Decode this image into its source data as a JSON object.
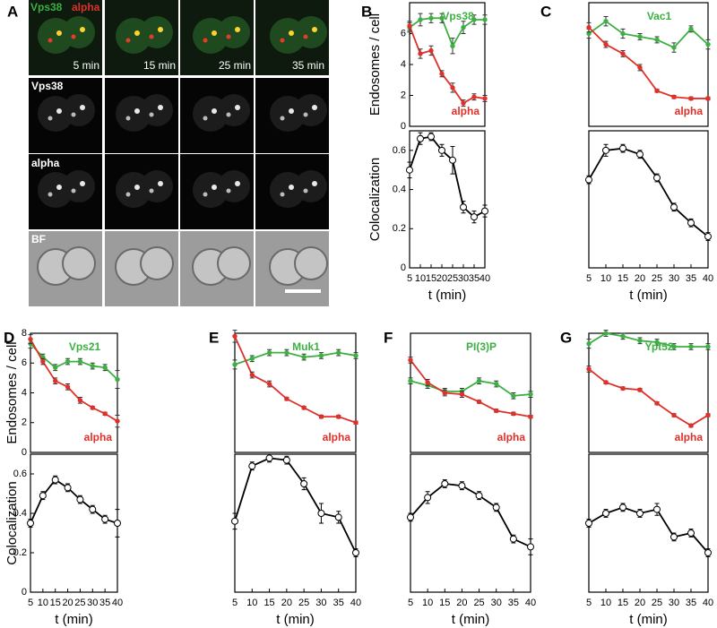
{
  "panel_a": {
    "label": "A",
    "merge_labels": [
      "Vps38",
      "alpha"
    ],
    "times": [
      "5 min",
      "15 min",
      "25 min",
      "35 min"
    ],
    "rows": [
      "Vps38",
      "alpha",
      "BF"
    ]
  },
  "chart_data": [
    {
      "type": "line",
      "panel": "B",
      "ylabel": "Endosomes / cell",
      "x": [
        5,
        10,
        15,
        20,
        25,
        30,
        35,
        40
      ],
      "xlim": [
        5,
        40
      ],
      "ylim": [
        0,
        8
      ],
      "yticks": [
        0,
        2,
        4,
        6
      ],
      "marker": "filled",
      "series": [
        {
          "name": "Vps38",
          "color": "#3cb043",
          "values": [
            6.4,
            6.9,
            7.0,
            7.0,
            5.2,
            6.4,
            6.9,
            6.9
          ],
          "errors": [
            0.3,
            0.4,
            0.3,
            0.3,
            0.5,
            0.4,
            0.3,
            0.3
          ]
        },
        {
          "name": "alpha",
          "color": "#e0302a",
          "values": [
            6.5,
            4.7,
            4.9,
            3.4,
            2.5,
            1.5,
            1.9,
            1.8
          ],
          "errors": [
            0.3,
            0.3,
            0.3,
            0.2,
            0.3,
            0.2,
            0.2,
            0.2
          ]
        }
      ]
    },
    {
      "type": "line",
      "ylabel": "Colocalization",
      "xlabel": "t (min)",
      "x": [
        5,
        10,
        15,
        20,
        25,
        30,
        35,
        40
      ],
      "xlim": [
        5,
        40
      ],
      "xticks": [
        5,
        10,
        15,
        20,
        25,
        30,
        35,
        40
      ],
      "ylim": [
        0,
        0.7
      ],
      "yticks": [
        0,
        0.2,
        0.4,
        0.6
      ],
      "marker": "open",
      "series": [
        {
          "color": "#000000",
          "values": [
            0.5,
            0.66,
            0.67,
            0.6,
            0.55,
            0.31,
            0.26,
            0.29
          ],
          "errors": [
            0.04,
            0.03,
            0.02,
            0.03,
            0.07,
            0.03,
            0.03,
            0.03
          ]
        }
      ]
    },
    {
      "type": "line",
      "panel": "C",
      "x": [
        5,
        10,
        15,
        20,
        25,
        30,
        35,
        40
      ],
      "xlim": [
        5,
        40
      ],
      "ylim": [
        0,
        8
      ],
      "marker": "filled",
      "series": [
        {
          "name": "Vac1",
          "color": "#3cb043",
          "values": [
            6.0,
            6.8,
            6.0,
            5.8,
            5.6,
            5.1,
            6.3,
            5.3
          ],
          "errors": [
            0.3,
            0.3,
            0.3,
            0.2,
            0.2,
            0.3,
            0.2,
            0.3
          ]
        },
        {
          "name": "alpha",
          "color": "#e0302a",
          "values": [
            6.4,
            5.3,
            4.7,
            3.8,
            2.3,
            1.9,
            1.8,
            1.8
          ],
          "errors": [
            0.3,
            0.2,
            0.2,
            0.2,
            0.1,
            0.1,
            0.1,
            0.1
          ]
        }
      ]
    },
    {
      "type": "line",
      "xlabel": "t (min)",
      "x": [
        5,
        10,
        15,
        20,
        25,
        30,
        35,
        40
      ],
      "xlim": [
        5,
        40
      ],
      "xticks": [
        5,
        10,
        15,
        20,
        25,
        30,
        35,
        40
      ],
      "ylim": [
        0,
        0.7
      ],
      "marker": "open",
      "series": [
        {
          "color": "#000000",
          "values": [
            0.45,
            0.6,
            0.61,
            0.58,
            0.46,
            0.31,
            0.23,
            0.16
          ],
          "errors": [
            0.02,
            0.03,
            0.02,
            0.02,
            0.02,
            0.02,
            0.02,
            0.02
          ]
        }
      ]
    },
    {
      "type": "line",
      "panel": "D",
      "ylabel": "Endosomes / cell",
      "x": [
        5,
        10,
        15,
        20,
        25,
        30,
        35,
        40
      ],
      "xlim": [
        5,
        40
      ],
      "ylim": [
        0,
        8
      ],
      "yticks": [
        0,
        2,
        4,
        6,
        8
      ],
      "marker": "filled",
      "series": [
        {
          "name": "Vps21",
          "color": "#3cb043",
          "values": [
            7.3,
            6.4,
            5.7,
            6.1,
            6.1,
            5.8,
            5.7,
            4.9
          ],
          "errors": [
            0.3,
            0.2,
            0.2,
            0.2,
            0.2,
            0.2,
            0.2,
            0.6
          ]
        },
        {
          "name": "alpha",
          "color": "#e0302a",
          "values": [
            7.6,
            6.1,
            4.8,
            4.4,
            3.5,
            3.0,
            2.6,
            2.1
          ],
          "errors": [
            0.3,
            0.2,
            0.2,
            0.2,
            0.2,
            0.1,
            0.1,
            0.4
          ]
        }
      ]
    },
    {
      "type": "line",
      "ylabel": "Colocalization",
      "xlabel": "t (min)",
      "x": [
        5,
        10,
        15,
        20,
        25,
        30,
        35,
        40
      ],
      "xlim": [
        5,
        40
      ],
      "xticks": [
        5,
        10,
        15,
        20,
        25,
        30,
        35,
        40
      ],
      "ylim": [
        0,
        0.7
      ],
      "yticks": [
        0,
        0.2,
        0.4,
        0.6
      ],
      "marker": "open",
      "series": [
        {
          "color": "#000000",
          "values": [
            0.35,
            0.49,
            0.57,
            0.53,
            0.47,
            0.42,
            0.37,
            0.35
          ],
          "errors": [
            0.02,
            0.02,
            0.02,
            0.02,
            0.02,
            0.02,
            0.02,
            0.07
          ]
        }
      ]
    },
    {
      "type": "line",
      "panel": "E",
      "x": [
        5,
        10,
        15,
        20,
        25,
        30,
        35,
        40
      ],
      "xlim": [
        5,
        40
      ],
      "ylim": [
        0,
        8
      ],
      "marker": "filled",
      "series": [
        {
          "name": "Muk1",
          "color": "#3cb043",
          "values": [
            5.9,
            6.3,
            6.7,
            6.7,
            6.4,
            6.5,
            6.7,
            6.5
          ],
          "errors": [
            0.3,
            0.2,
            0.2,
            0.2,
            0.2,
            0.2,
            0.2,
            0.2
          ]
        },
        {
          "name": "alpha",
          "color": "#e0302a",
          "values": [
            7.8,
            5.2,
            4.6,
            3.6,
            3.0,
            2.4,
            2.4,
            2.0
          ],
          "errors": [
            0.4,
            0.2,
            0.2,
            0.1,
            0.1,
            0.1,
            0.1,
            0.1
          ]
        }
      ]
    },
    {
      "type": "line",
      "xlabel": "t (min)",
      "x": [
        5,
        10,
        15,
        20,
        25,
        30,
        35,
        40
      ],
      "xlim": [
        5,
        40
      ],
      "xticks": [
        5,
        10,
        15,
        20,
        25,
        30,
        35,
        40
      ],
      "ylim": [
        0,
        0.7
      ],
      "marker": "open",
      "series": [
        {
          "color": "#000000",
          "values": [
            0.36,
            0.64,
            0.68,
            0.67,
            0.55,
            0.4,
            0.38,
            0.2
          ],
          "errors": [
            0.04,
            0.02,
            0.02,
            0.02,
            0.03,
            0.05,
            0.03,
            0.02
          ]
        }
      ]
    },
    {
      "type": "line",
      "panel": "F",
      "x": [
        5,
        10,
        15,
        20,
        25,
        30,
        35,
        40
      ],
      "xlim": [
        5,
        40
      ],
      "ylim": [
        0,
        8
      ],
      "marker": "filled",
      "series": [
        {
          "name": "PI(3)P",
          "color": "#3cb043",
          "values": [
            4.8,
            4.5,
            4.1,
            4.1,
            4.8,
            4.6,
            3.8,
            3.9
          ],
          "errors": [
            0.2,
            0.2,
            0.2,
            0.2,
            0.2,
            0.2,
            0.2,
            0.2
          ]
        },
        {
          "name": "alpha",
          "color": "#e0302a",
          "values": [
            6.2,
            4.7,
            4.0,
            3.9,
            3.4,
            2.8,
            2.6,
            2.4
          ],
          "errors": [
            0.2,
            0.2,
            0.2,
            0.2,
            0.1,
            0.1,
            0.1,
            0.1
          ]
        }
      ]
    },
    {
      "type": "line",
      "xlabel": "t (min)",
      "x": [
        5,
        10,
        15,
        20,
        25,
        30,
        35,
        40
      ],
      "xlim": [
        5,
        40
      ],
      "xticks": [
        5,
        10,
        15,
        20,
        25,
        30,
        35,
        40
      ],
      "ylim": [
        0,
        0.7
      ],
      "marker": "open",
      "series": [
        {
          "color": "#000000",
          "values": [
            0.38,
            0.48,
            0.55,
            0.54,
            0.49,
            0.43,
            0.27,
            0.23
          ],
          "errors": [
            0.02,
            0.03,
            0.02,
            0.02,
            0.02,
            0.02,
            0.02,
            0.04
          ]
        }
      ]
    },
    {
      "type": "line",
      "panel": "G",
      "x": [
        5,
        10,
        15,
        20,
        25,
        30,
        35,
        40
      ],
      "xlim": [
        5,
        40
      ],
      "ylim": [
        0,
        8
      ],
      "marker": "filled",
      "series": [
        {
          "name": "Ypt52",
          "color": "#3cb043",
          "values": [
            7.3,
            8.0,
            7.8,
            7.5,
            7.4,
            7.1,
            7.1,
            7.1
          ],
          "errors": [
            0.3,
            0.2,
            0.2,
            0.2,
            0.2,
            0.2,
            0.2,
            0.2
          ]
        },
        {
          "name": "alpha",
          "color": "#e0302a",
          "values": [
            5.6,
            4.7,
            4.3,
            4.2,
            3.3,
            2.5,
            1.8,
            2.5
          ],
          "errors": [
            0.2,
            0.1,
            0.1,
            0.1,
            0.1,
            0.1,
            0.1,
            0.1
          ]
        }
      ]
    },
    {
      "type": "line",
      "xlabel": "t (min)",
      "x": [
        5,
        10,
        15,
        20,
        25,
        30,
        35,
        40
      ],
      "xlim": [
        5,
        40
      ],
      "xticks": [
        5,
        10,
        15,
        20,
        25,
        30,
        35,
        40
      ],
      "ylim": [
        0,
        0.7
      ],
      "marker": "open",
      "series": [
        {
          "color": "#000000",
          "values": [
            0.35,
            0.4,
            0.43,
            0.4,
            0.42,
            0.28,
            0.3,
            0.2
          ],
          "errors": [
            0.02,
            0.02,
            0.02,
            0.02,
            0.03,
            0.02,
            0.02,
            0.02
          ]
        }
      ]
    }
  ]
}
